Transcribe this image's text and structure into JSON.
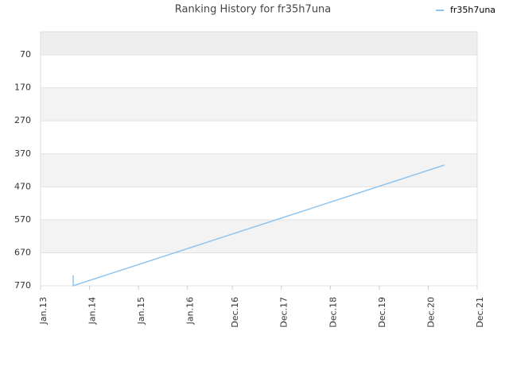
{
  "chart_data": {
    "type": "line",
    "title": "Ranking History for fr35h7una",
    "x": [
      "2013-09",
      "2013-09",
      "2021-04"
    ],
    "series": [
      {
        "name": "fr35h7una",
        "color": "#8ec4ef",
        "values": [
          738,
          770,
          404
        ]
      }
    ],
    "xlim": [
      "2013-01",
      "2021-12"
    ],
    "xticks": [
      {
        "value": "2013-01",
        "label": "Jan.13"
      },
      {
        "value": "2014-01",
        "label": "Jan.14"
      },
      {
        "value": "2015-01",
        "label": "Jan.15"
      },
      {
        "value": "2016-01",
        "label": "Jan.16"
      },
      {
        "value": "2016-12",
        "label": "Dec.16"
      },
      {
        "value": "2017-12",
        "label": "Dec.17"
      },
      {
        "value": "2018-12",
        "label": "Dec.18"
      },
      {
        "value": "2019-12",
        "label": "Dec.19"
      },
      {
        "value": "2020-12",
        "label": "Dec.20"
      },
      {
        "value": "2021-12",
        "label": "Dec.21"
      }
    ],
    "ylim": [
      770,
      0
    ],
    "yticks": [
      70,
      170,
      270,
      370,
      470,
      570,
      670,
      770
    ],
    "grid": true,
    "legend": "top-right"
  }
}
